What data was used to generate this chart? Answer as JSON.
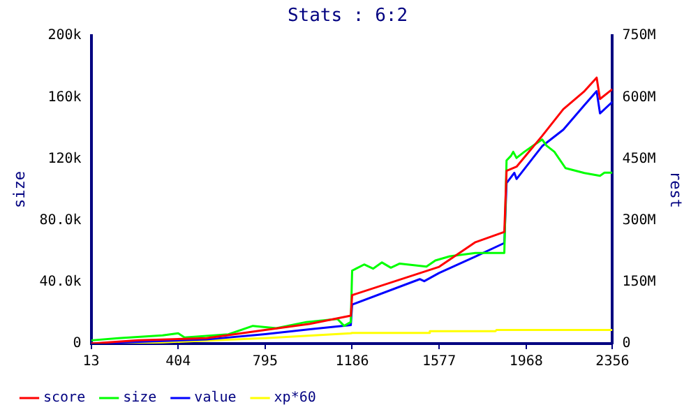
{
  "chart_data": {
    "type": "line",
    "title": "Stats : 6:2",
    "ylabel": "size",
    "y2label": "rest",
    "legend": "bottom left",
    "grid": false,
    "marker": "none",
    "line_style": "solid",
    "xlim": [
      13,
      2356
    ],
    "xticks": [
      13,
      404,
      795,
      1186,
      1577,
      1968,
      2356
    ],
    "ylim": [
      0,
      200000
    ],
    "yticks": [
      {
        "value": 0,
        "label": "0"
      },
      {
        "value": 40000,
        "label": "40.0k"
      },
      {
        "value": 80000,
        "label": "80.0k"
      },
      {
        "value": 120000,
        "label": "120k"
      },
      {
        "value": 160000,
        "label": "160k"
      },
      {
        "value": 200000,
        "label": "200k"
      }
    ],
    "y2lim": [
      0,
      750000000
    ],
    "y2ticks": [
      {
        "value": 0,
        "label": "0"
      },
      {
        "value": 150000000,
        "label": "150M"
      },
      {
        "value": 300000000,
        "label": "300M"
      },
      {
        "value": 450000000,
        "label": "450M"
      },
      {
        "value": 600000000,
        "label": "600M"
      },
      {
        "value": 750000000,
        "label": "750M"
      }
    ],
    "series": [
      {
        "name": "score",
        "color": "#ff0000",
        "axis": "y2",
        "x": [
          13,
          224,
          531,
          795,
          996,
          1180,
          1186,
          1577,
          1740,
          1870,
          1880,
          1925,
          2040,
          2135,
          2230,
          2285,
          2300,
          2356
        ],
        "values": [
          0,
          8000000,
          13000000,
          33000000,
          48000000,
          68000000,
          118000000,
          187000000,
          247000000,
          272000000,
          421000000,
          431000000,
          506000000,
          571000000,
          615000000,
          648000000,
          596000000,
          620000000
        ]
      },
      {
        "name": "size",
        "color": "#00ff00",
        "axis": "y",
        "x": [
          13,
          136,
          334,
          404,
          433,
          630,
          740,
          845,
          980,
          1120,
          1150,
          1180,
          1186,
          1240,
          1280,
          1320,
          1360,
          1400,
          1520,
          1560,
          1625,
          1740,
          1870,
          1880,
          1900,
          1910,
          1925,
          1960,
          2000,
          2040,
          2060,
          2095,
          2145,
          2230,
          2300,
          2320,
          2356
        ],
        "values": [
          2100,
          3500,
          5300,
          6700,
          4000,
          6000,
          11500,
          10000,
          14000,
          16000,
          11500,
          14000,
          47400,
          51400,
          48700,
          52700,
          49300,
          52000,
          50000,
          54000,
          56700,
          58900,
          58900,
          119000,
          122000,
          124600,
          120600,
          124600,
          128600,
          132600,
          128600,
          124600,
          114000,
          110800,
          109000,
          111000,
          111000
        ]
      },
      {
        "name": "value",
        "color": "#0000ff",
        "axis": "y2",
        "x": [
          13,
          531,
          795,
          996,
          1180,
          1186,
          1490,
          1510,
          1577,
          1740,
          1870,
          1880,
          1915,
          1925,
          2040,
          2135,
          2230,
          2285,
          2300,
          2356
        ],
        "values": [
          0,
          10000000,
          23000000,
          35000000,
          45000000,
          95000000,
          157000000,
          152000000,
          172000000,
          212000000,
          245000000,
          391000000,
          416000000,
          401000000,
          481000000,
          521000000,
          581000000,
          615000000,
          561000000,
          589000000
        ]
      },
      {
        "name": "xp*60",
        "color": "#ffff00",
        "axis": "y2",
        "x": [
          13,
          334,
          795,
          1180,
          1186,
          1530,
          1535,
          1830,
          1835,
          2356
        ],
        "values": [
          0,
          3000000,
          13000000,
          25000000,
          26000000,
          26000000,
          30000000,
          30000000,
          33000000,
          33000000
        ]
      }
    ]
  }
}
